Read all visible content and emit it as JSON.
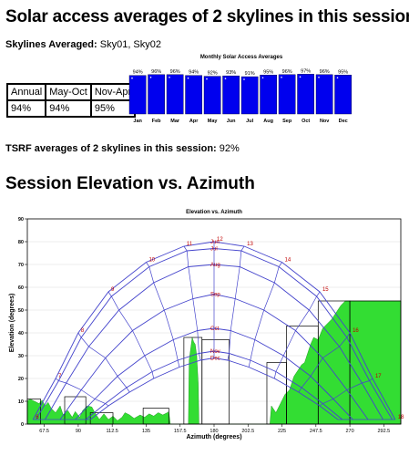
{
  "heading": "Solar access averages of 2 skylines in this session",
  "skylines_label": "Skylines Averaged:",
  "skylines_value": "Sky01, Sky02",
  "averages_table": {
    "headers": [
      "Annual",
      "May-Oct",
      "Nov-Apr"
    ],
    "values": [
      "94%",
      "94%",
      "95%"
    ]
  },
  "tsrf_label": "TSRF averages of 2 skylines in this session:",
  "tsrf_value": "92%",
  "section_heading": "Session Elevation vs. Azimuth",
  "chart_data": [
    {
      "type": "bar",
      "title": "Monthly Solar Access Averages",
      "categories": [
        "Jan",
        "Feb",
        "Mar",
        "Apr",
        "May",
        "Jun",
        "Jul",
        "Aug",
        "Sep",
        "Oct",
        "Nov",
        "Dec"
      ],
      "values": [
        94,
        96,
        96,
        94,
        92,
        93,
        91,
        95,
        96,
        97,
        96,
        95
      ],
      "value_labels": [
        "94%",
        "96%",
        "96%",
        "94%",
        "92%",
        "93%",
        "91%",
        "95%",
        "96%",
        "97%",
        "96%",
        "95%"
      ],
      "ylim": [
        0,
        100
      ],
      "color": "#0000ee"
    },
    {
      "type": "area",
      "title": "Elevation vs. Azimuth",
      "xlabel": "Azimuth (degrees)",
      "ylabel": "Elevation (degrees)",
      "xlim": [
        56.25,
        303.75
      ],
      "ylim": [
        0,
        90
      ],
      "xticks": [
        "67.5",
        "90",
        "112.5",
        "135",
        "157.5",
        "180",
        "202.5",
        "225",
        "247.5",
        "270",
        "292.5"
      ],
      "xtick_values": [
        67.5,
        90,
        112.5,
        135,
        157.5,
        180,
        202.5,
        225,
        247.5,
        270,
        292.5
      ],
      "yticks": [
        "0",
        "10",
        "20",
        "30",
        "40",
        "50",
        "60",
        "70",
        "80",
        "90"
      ],
      "ytick_values": [
        0,
        10,
        20,
        30,
        40,
        50,
        60,
        70,
        80,
        90
      ],
      "fill_color": "#33dd33",
      "path_color": "#4444cc",
      "skyline": [
        [
          56.25,
          10
        ],
        [
          58,
          11
        ],
        [
          61,
          10
        ],
        [
          64,
          9
        ],
        [
          66,
          10.5
        ],
        [
          68,
          8
        ],
        [
          70,
          9.5
        ],
        [
          72,
          7
        ],
        [
          75,
          5
        ],
        [
          78,
          8
        ],
        [
          80,
          4
        ],
        [
          83,
          6
        ],
        [
          86,
          3
        ],
        [
          88,
          5.5
        ],
        [
          91,
          3
        ],
        [
          93,
          6
        ],
        [
          96,
          8
        ],
        [
          99,
          7.5
        ],
        [
          101,
          5
        ],
        [
          104,
          2
        ],
        [
          107,
          4.5
        ],
        [
          110,
          2
        ],
        [
          113,
          3.5
        ],
        [
          116,
          1.5
        ],
        [
          119,
          3
        ],
        [
          121,
          5
        ],
        [
          124,
          4
        ],
        [
          127,
          2.5
        ],
        [
          131,
          4
        ],
        [
          134,
          3
        ],
        [
          137,
          4.5
        ],
        [
          140,
          3.5
        ],
        [
          143,
          5
        ],
        [
          146,
          4
        ],
        [
          149,
          5
        ],
        [
          150,
          5.5
        ],
        [
          151,
          0
        ],
        [
          163,
          0
        ],
        [
          163.5,
          28
        ],
        [
          164.5,
          33
        ],
        [
          165.5,
          38
        ],
        [
          166.5,
          36
        ],
        [
          167.5,
          35
        ],
        [
          168.5,
          30
        ],
        [
          169.5,
          18
        ],
        [
          170,
          0
        ],
        [
          217,
          0
        ],
        [
          218,
          8
        ],
        [
          221,
          5
        ],
        [
          224,
          9
        ],
        [
          227,
          13
        ],
        [
          230,
          15
        ],
        [
          233,
          21
        ],
        [
          236,
          24
        ],
        [
          238,
          26
        ],
        [
          240,
          27
        ],
        [
          242,
          31
        ],
        [
          244,
          35
        ],
        [
          246,
          38
        ],
        [
          249,
          37
        ],
        [
          252,
          42
        ],
        [
          255,
          44
        ],
        [
          258,
          46
        ],
        [
          261,
          49
        ],
        [
          264,
          52
        ],
        [
          267,
          54
        ],
        [
          270,
          54
        ],
        [
          273,
          54
        ],
        [
          276,
          54
        ],
        [
          279,
          54
        ],
        [
          282,
          54
        ],
        [
          285,
          54
        ],
        [
          288,
          54
        ],
        [
          291,
          54
        ],
        [
          294,
          54
        ],
        [
          297,
          54
        ],
        [
          300,
          54
        ],
        [
          303.75,
          54
        ],
        [
          303.75,
          0
        ]
      ],
      "obstruction_boxes": [
        [
          56.25,
          0,
          65,
          11
        ],
        [
          81,
          0,
          95,
          12
        ],
        [
          98,
          0,
          113,
          5
        ],
        [
          133,
          0,
          150,
          7
        ],
        [
          160,
          0,
          172,
          38
        ],
        [
          172,
          0,
          190,
          37
        ],
        [
          215,
          0,
          228,
          27
        ],
        [
          228,
          0,
          249,
          43
        ],
        [
          249,
          0,
          270,
          54
        ],
        [
          270,
          0,
          303.75,
          54
        ]
      ],
      "month_paths": [
        {
          "label": "Jun",
          "points": [
            [
              60,
              2
            ],
            [
              75,
              20
            ],
            [
              90,
              40
            ],
            [
              110,
              58
            ],
            [
              135,
              71
            ],
            [
              160,
              78
            ],
            [
              180,
              80
            ],
            [
              200,
              78
            ],
            [
              225,
              71
            ],
            [
              250,
              58
            ],
            [
              270,
              40
            ],
            [
              285,
              20
            ],
            [
              300,
              2
            ]
          ]
        },
        {
          "label": "Jul",
          "points": [
            [
              62,
              2
            ],
            [
              77,
              19
            ],
            [
              92,
              38
            ],
            [
              112,
              56
            ],
            [
              137,
              69
            ],
            [
              162,
              76
            ],
            [
              180,
              77
            ],
            [
              198,
              76
            ],
            [
              223,
              69
            ],
            [
              248,
              56
            ],
            [
              268,
              38
            ],
            [
              283,
              19
            ],
            [
              298,
              2
            ]
          ]
        },
        {
          "label": "Aug",
          "points": [
            [
              68,
              2
            ],
            [
              82,
              18
            ],
            [
              97,
              34
            ],
            [
              117,
              50
            ],
            [
              140,
              62
            ],
            [
              163,
              69
            ],
            [
              180,
              70
            ],
            [
              197,
              69
            ],
            [
              220,
              62
            ],
            [
              243,
              50
            ],
            [
              263,
              34
            ],
            [
              278,
              18
            ],
            [
              292,
              2
            ]
          ]
        },
        {
          "label": "Sep",
          "points": [
            [
              78,
              2
            ],
            [
              92,
              15
            ],
            [
              108,
              29
            ],
            [
              126,
              41
            ],
            [
              147,
              50
            ],
            [
              166,
              55
            ],
            [
              180,
              57
            ],
            [
              194,
              55
            ],
            [
              213,
              50
            ],
            [
              234,
              41
            ],
            [
              252,
              29
            ],
            [
              268,
              15
            ],
            [
              282,
              2
            ]
          ]
        },
        {
          "label": "Oct",
          "points": [
            [
              88,
              2
            ],
            [
              101,
              11
            ],
            [
              116,
              21
            ],
            [
              134,
              30
            ],
            [
              153,
              37
            ],
            [
              169,
              41
            ],
            [
              180,
              42
            ],
            [
              191,
              41
            ],
            [
              207,
              37
            ],
            [
              226,
              30
            ],
            [
              244,
              21
            ],
            [
              259,
              11
            ],
            [
              272,
              2
            ]
          ]
        },
        {
          "label": "Nov",
          "points": [
            [
              95,
              2
            ],
            [
              108,
              9
            ],
            [
              122,
              16
            ],
            [
              139,
              23
            ],
            [
              156,
              28
            ],
            [
              170,
              31
            ],
            [
              180,
              32
            ],
            [
              190,
              31
            ],
            [
              204,
              28
            ],
            [
              221,
              23
            ],
            [
              238,
              16
            ],
            [
              252,
              9
            ],
            [
              265,
              2
            ]
          ]
        },
        {
          "label": "Dec",
          "points": [
            [
              98,
              2
            ],
            [
              110,
              8
            ],
            [
              124,
              14
            ],
            [
              140,
              20
            ],
            [
              157,
              25
            ],
            [
              171,
              28
            ],
            [
              180,
              29
            ],
            [
              189,
              28
            ],
            [
              203,
              25
            ],
            [
              220,
              20
            ],
            [
              236,
              14
            ],
            [
              250,
              8
            ],
            [
              262,
              2
            ]
          ]
        }
      ],
      "hour_labels": [
        "6",
        "7",
        "8",
        "9",
        "10",
        "11",
        "12",
        "13",
        "14",
        "15",
        "16",
        "17",
        "18"
      ]
    }
  ]
}
